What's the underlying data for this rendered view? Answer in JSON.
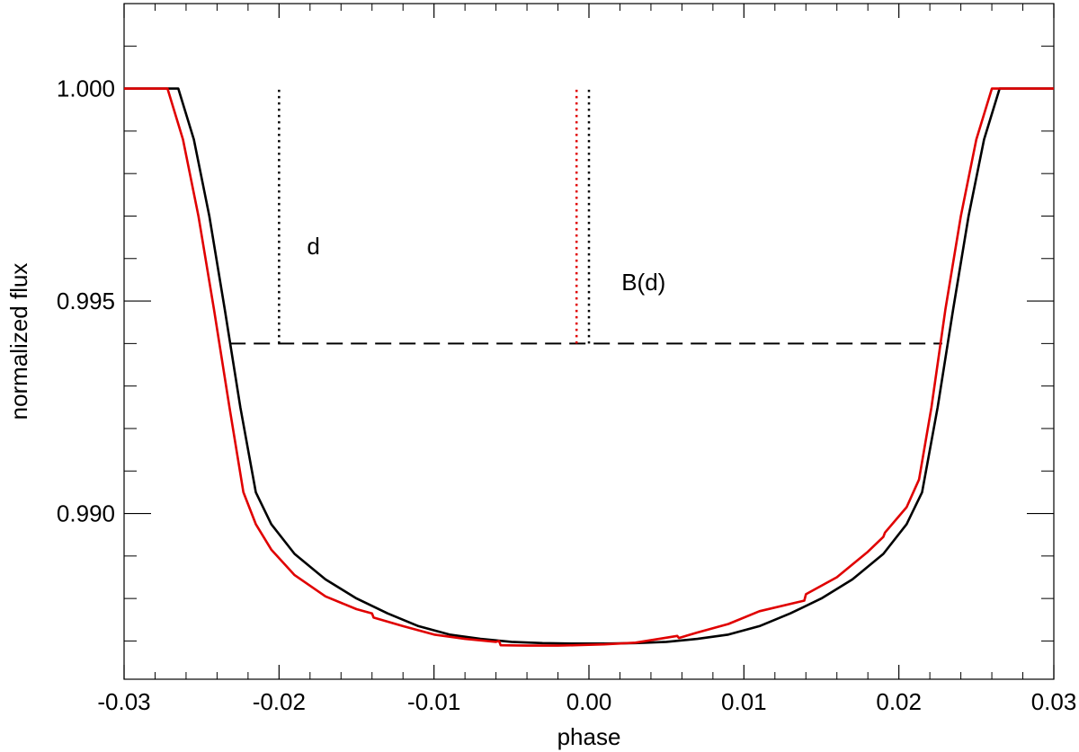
{
  "chart_data": {
    "type": "line",
    "title": "",
    "xlabel": "phase",
    "ylabel": "normalized flux",
    "xlim": [
      -0.03,
      0.03
    ],
    "ylim": [
      0.9861,
      1.002
    ],
    "grid": false,
    "x_ticks": [
      {
        "value": -0.03,
        "label": "-0.03"
      },
      {
        "value": -0.02,
        "label": "-0.02"
      },
      {
        "value": -0.01,
        "label": "-0.01"
      },
      {
        "value": 0.0,
        "label": "0.00"
      },
      {
        "value": 0.01,
        "label": "0.01"
      },
      {
        "value": 0.02,
        "label": "0.02"
      },
      {
        "value": 0.03,
        "label": "0.03"
      }
    ],
    "y_ticks": [
      {
        "value": 0.99,
        "label": "0.990"
      },
      {
        "value": 0.995,
        "label": "0.995"
      },
      {
        "value": 1.0,
        "label": "1.000"
      }
    ],
    "series": [
      {
        "color": "#000000",
        "style": "solid",
        "x": [
          -0.03,
          -0.0265,
          -0.0255,
          -0.0245,
          -0.0235,
          -0.0225,
          -0.0215,
          -0.0205,
          -0.019,
          -0.017,
          -0.015,
          -0.013,
          -0.011,
          -0.009,
          -0.007,
          -0.005,
          -0.003,
          -0.001,
          0.001,
          0.003,
          0.005,
          0.007,
          0.009,
          0.011,
          0.013,
          0.015,
          0.017,
          0.019,
          0.0205,
          0.0215,
          0.0225,
          0.0235,
          0.0245,
          0.0255,
          0.0265,
          0.03
        ],
        "y": [
          1.0,
          1.0,
          0.9988,
          0.997,
          0.9948,
          0.9925,
          0.9905,
          0.98975,
          0.98905,
          0.98845,
          0.988,
          0.98765,
          0.98735,
          0.98715,
          0.98705,
          0.98698,
          0.98695,
          0.98694,
          0.98694,
          0.98695,
          0.98698,
          0.98705,
          0.98715,
          0.98735,
          0.98765,
          0.988,
          0.98845,
          0.98905,
          0.98975,
          0.9905,
          0.9925,
          0.9948,
          0.997,
          0.9988,
          1.0,
          1.0
        ]
      },
      {
        "color": "#e00000",
        "style": "solid",
        "x": [
          -0.03,
          -0.0272,
          -0.0262,
          -0.0252,
          -0.0242,
          -0.0232,
          -0.0223,
          -0.0215,
          -0.0205,
          -0.019,
          -0.017,
          -0.015,
          -0.014,
          -0.0139,
          -0.012,
          -0.01,
          -0.008,
          -0.006,
          -0.0058,
          -0.0057,
          -0.004,
          -0.002,
          -0.001,
          0.001,
          0.003,
          0.0057,
          0.0058,
          0.007,
          0.009,
          0.011,
          0.0139,
          0.014,
          0.016,
          0.018,
          0.019,
          0.0191,
          0.0205,
          0.0213,
          0.0221,
          0.023,
          0.024,
          0.025,
          0.026,
          0.03
        ],
        "y": [
          1.0,
          1.0,
          0.9988,
          0.997,
          0.9948,
          0.9925,
          0.9905,
          0.98975,
          0.98915,
          0.98855,
          0.98805,
          0.98775,
          0.98765,
          0.98755,
          0.98735,
          0.98715,
          0.98705,
          0.98698,
          0.987,
          0.9869,
          0.98689,
          0.98689,
          0.9869,
          0.98692,
          0.98696,
          0.98712,
          0.98707,
          0.9872,
          0.9874,
          0.9877,
          0.98795,
          0.9881,
          0.9885,
          0.9891,
          0.98945,
          0.98955,
          0.99015,
          0.9908,
          0.9925,
          0.9948,
          0.997,
          0.9988,
          1.0,
          1.0
        ]
      }
    ],
    "reference_lines": [
      {
        "kind": "horizontal",
        "y": 0.994,
        "x_from": -0.0232,
        "x_to": 0.0228,
        "style": "dashed",
        "color": "#000000"
      },
      {
        "kind": "vertical",
        "x": -0.02,
        "y_from": 0.994,
        "y_to": 1.0,
        "style": "dotted",
        "color": "#000000"
      },
      {
        "kind": "vertical",
        "x": -0.0008,
        "y_from": 0.994,
        "y_to": 1.0,
        "style": "dotted",
        "color": "#e00000"
      },
      {
        "kind": "vertical",
        "x": 0.0,
        "y_from": 0.994,
        "y_to": 1.0,
        "style": "dotted",
        "color": "#000000"
      }
    ],
    "annotations": [
      {
        "text": "d",
        "x": -0.0182,
        "y": 0.9961
      },
      {
        "text": "B(d)",
        "x": 0.0021,
        "y": 0.99525
      }
    ]
  }
}
